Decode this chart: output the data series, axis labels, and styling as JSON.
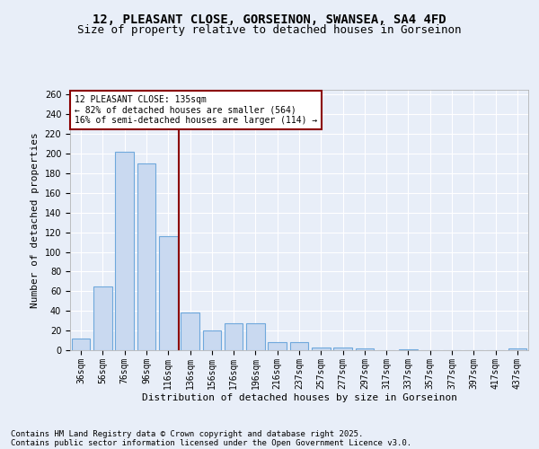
{
  "title_line1": "12, PLEASANT CLOSE, GORSEINON, SWANSEA, SA4 4FD",
  "title_line2": "Size of property relative to detached houses in Gorseinon",
  "xlabel": "Distribution of detached houses by size in Gorseinon",
  "ylabel": "Number of detached properties",
  "footer_line1": "Contains HM Land Registry data © Crown copyright and database right 2025.",
  "footer_line2": "Contains public sector information licensed under the Open Government Licence v3.0.",
  "categories": [
    "36sqm",
    "56sqm",
    "76sqm",
    "96sqm",
    "116sqm",
    "136sqm",
    "156sqm",
    "176sqm",
    "196sqm",
    "216sqm",
    "237sqm",
    "257sqm",
    "277sqm",
    "297sqm",
    "317sqm",
    "337sqm",
    "357sqm",
    "377sqm",
    "397sqm",
    "417sqm",
    "437sqm"
  ],
  "values": [
    12,
    65,
    202,
    190,
    116,
    38,
    20,
    27,
    27,
    8,
    8,
    3,
    3,
    2,
    0,
    1,
    0,
    0,
    0,
    0,
    2
  ],
  "bar_color": "#c9d9f0",
  "bar_edge_color": "#6fa8dc",
  "vline_color": "#8b0000",
  "annotation_text": "12 PLEASANT CLOSE: 135sqm\n← 82% of detached houses are smaller (564)\n16% of semi-detached houses are larger (114) →",
  "annotation_box_color": "#ffffff",
  "annotation_box_edge_color": "#8b0000",
  "ylim": [
    0,
    265
  ],
  "yticks": [
    0,
    20,
    40,
    60,
    80,
    100,
    120,
    140,
    160,
    180,
    200,
    220,
    240,
    260
  ],
  "background_color": "#e8eef8",
  "grid_color": "#ffffff",
  "title_fontsize": 10,
  "subtitle_fontsize": 9,
  "axis_label_fontsize": 8,
  "tick_fontsize": 7,
  "annotation_fontsize": 7,
  "footer_fontsize": 6.5
}
